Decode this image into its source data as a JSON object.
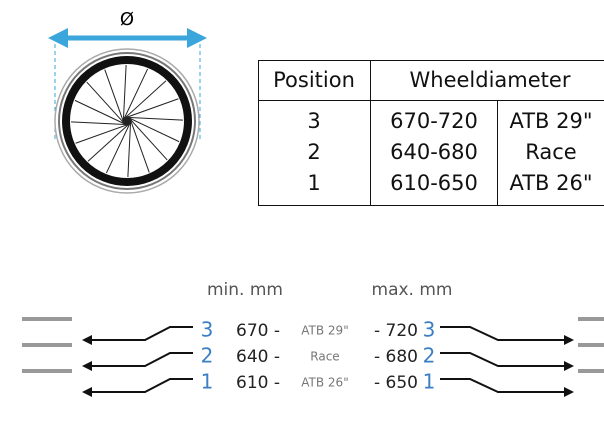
{
  "wheel_label": "Ø",
  "table": {
    "headers": [
      "Position",
      "Wheeldiameter"
    ],
    "rows": [
      [
        "3",
        "670-720",
        "ATB 29\""
      ],
      [
        "2",
        "640-680",
        "Race"
      ],
      [
        "1",
        "610-650",
        "ATB 26\""
      ]
    ]
  },
  "diagram": {
    "min_label": "min. mm",
    "max_label": "max. mm",
    "rows": [
      {
        "position": "3",
        "min": "670 -",
        "type": "ATB 29\"",
        "max": "- 720",
        "position_right": "3"
      },
      {
        "position": "2",
        "min": "640 -",
        "type": "Race",
        "max": "- 680",
        "position_right": "2"
      },
      {
        "position": "1",
        "min": "610 -",
        "type": "ATB 26\"",
        "max": "- 650",
        "position_right": "1"
      }
    ]
  }
}
